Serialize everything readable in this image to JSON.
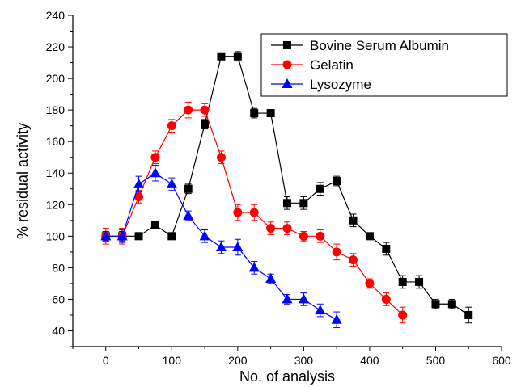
{
  "chart_data": {
    "type": "line",
    "xlabel": "No. of analysis",
    "ylabel": "% residual activity",
    "xlim": [
      -50,
      600
    ],
    "ylim": [
      30,
      240
    ],
    "x_ticks": [
      0,
      100,
      200,
      300,
      400,
      500,
      600
    ],
    "y_ticks": [
      40,
      60,
      80,
      100,
      120,
      140,
      160,
      180,
      200,
      220,
      240
    ],
    "legend_position": "top-right",
    "grid": false,
    "error_bars": true,
    "series": [
      {
        "name": "Bovine Serum Albumin",
        "color": "#000000",
        "marker": "square",
        "x": [
          0,
          25,
          50,
          75,
          100,
          125,
          150,
          175,
          200,
          225,
          250,
          275,
          300,
          325,
          350,
          375,
          400,
          425,
          450,
          475,
          500,
          525,
          550
        ],
        "y": [
          100,
          100,
          100,
          107,
          100,
          130,
          171,
          214,
          214,
          178,
          178,
          121,
          121,
          130,
          135,
          110,
          100,
          92,
          71,
          71,
          57,
          57,
          50
        ],
        "err": [
          3,
          3,
          2,
          2,
          2,
          3,
          3,
          2,
          3,
          3,
          2,
          4,
          4,
          4,
          3,
          4,
          2,
          4,
          4,
          4,
          3,
          3,
          5
        ]
      },
      {
        "name": "Gelatin",
        "color": "#ff0000",
        "marker": "circle",
        "x": [
          0,
          25,
          50,
          75,
          100,
          125,
          150,
          175,
          200,
          225,
          250,
          275,
          300,
          325,
          350,
          375,
          400,
          425,
          450
        ],
        "y": [
          100,
          100,
          125,
          150,
          170,
          180,
          180,
          150,
          115,
          115,
          105,
          105,
          100,
          100,
          90,
          85,
          70,
          60,
          50
        ],
        "err": [
          5,
          5,
          4,
          4,
          4,
          5,
          4,
          4,
          5,
          5,
          4,
          4,
          3,
          4,
          5,
          4,
          3,
          4,
          5
        ]
      },
      {
        "name": "Lysozyme",
        "color": "#0000ff",
        "marker": "triangle",
        "x": [
          0,
          25,
          50,
          75,
          100,
          125,
          150,
          175,
          200,
          225,
          250,
          275,
          300,
          325,
          350
        ],
        "y": [
          100,
          100,
          133,
          140,
          133,
          113,
          100,
          93,
          93,
          80,
          73,
          60,
          60,
          53,
          47
        ],
        "err": [
          3,
          4,
          5,
          5,
          4,
          3,
          4,
          4,
          5,
          4,
          3,
          3,
          4,
          4,
          5
        ]
      }
    ]
  }
}
